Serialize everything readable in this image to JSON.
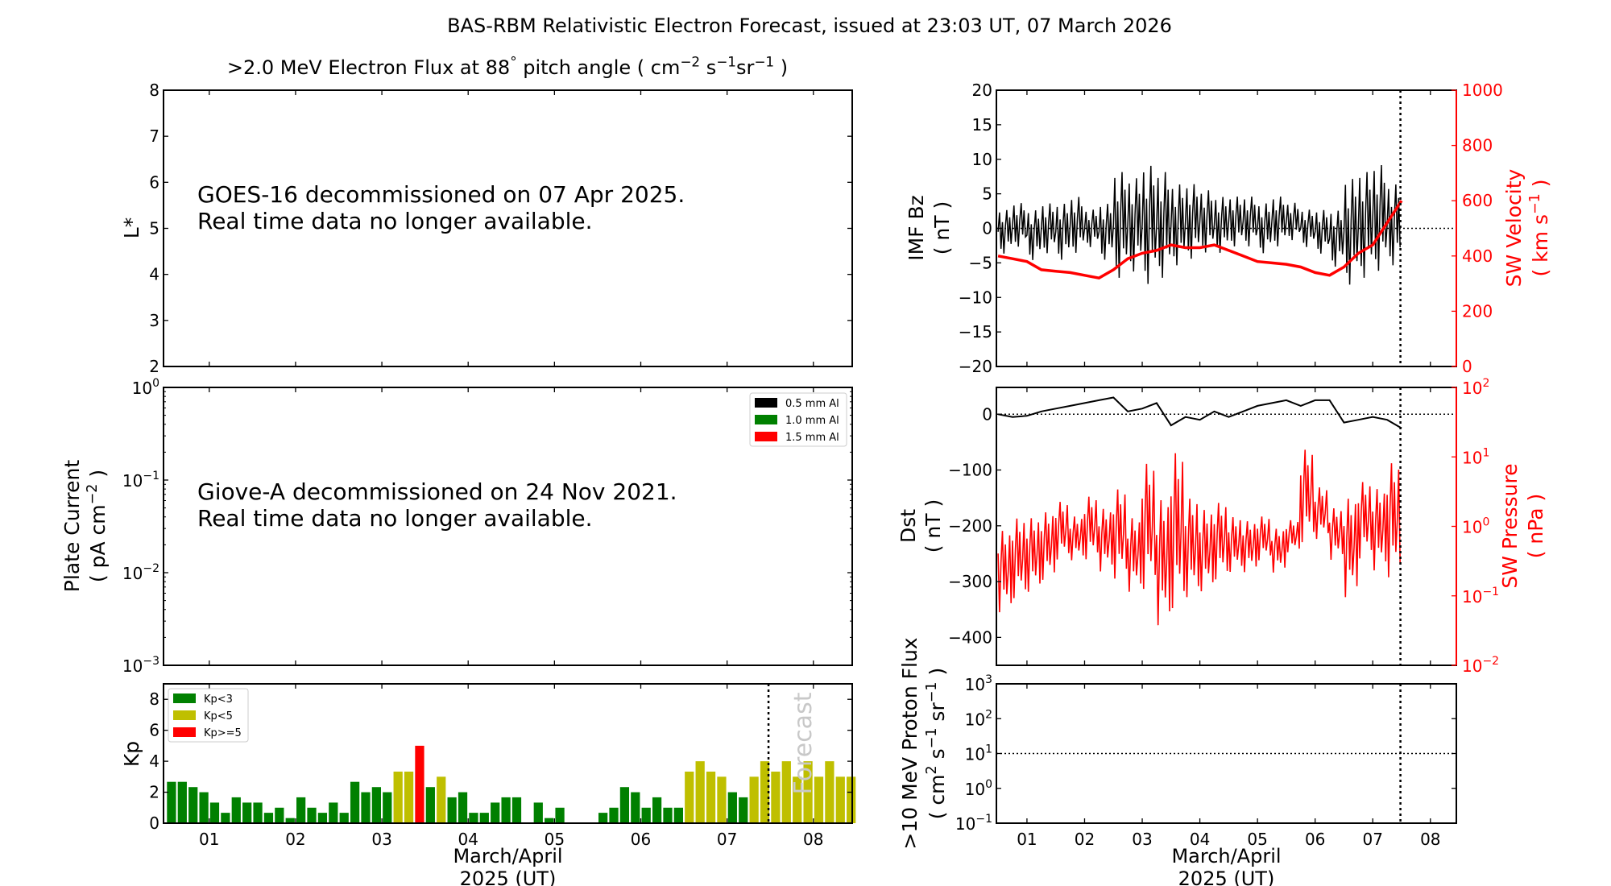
{
  "title": "BAS-RBM Relativistic Electron Forecast, issued at 23:03 UT, 07 March 2026",
  "colors": {
    "green": "#008000",
    "yellow": "#bfbf00",
    "red": "#ff0000",
    "black": "#000000",
    "forecast": "#c8c8c8"
  },
  "x_axis": {
    "xlim_days": [
      0.47,
      8.45
    ],
    "ticks": [
      1,
      2,
      3,
      4,
      5,
      6,
      7,
      8
    ],
    "tick_labels": [
      "01",
      "02",
      "03",
      "04",
      "05",
      "06",
      "07",
      "08"
    ],
    "xlabel_line1": "March/April",
    "xlabel_line2": "2025 (UT)",
    "now_day": 7.48
  },
  "chart_data": [
    {
      "id": "electron-flux",
      "type": "heatmap",
      "title_parts": [
        ">2.0 MeV Electron Flux at 88",
        "°",
        " pitch angle ( cm",
        "−2",
        " s",
        "−1",
        "sr",
        "−1",
        " )"
      ],
      "ylabel": "L*",
      "ylim": [
        2,
        8
      ],
      "yticks": [
        2,
        3,
        4,
        5,
        6,
        7,
        8
      ],
      "message": [
        "GOES-16 decommissioned on 07 Apr 2025.",
        "Real time data no longer available."
      ]
    },
    {
      "id": "plate-current",
      "type": "line",
      "ylabel": "Plate Current",
      "ylabel_units_parts": [
        "( pA cm",
        "−2",
        " )"
      ],
      "yscale": "log",
      "ylim_exp": [
        -3,
        0
      ],
      "ytick_exps": [
        "−3",
        "−2",
        "−1",
        "0"
      ],
      "legend": [
        {
          "label": "0.5 mm Al",
          "color": "#000000"
        },
        {
          "label": "1.0 mm Al",
          "color": "#008000"
        },
        {
          "label": "1.5 mm Al",
          "color": "#ff0000"
        }
      ],
      "legend_position": "top-right",
      "message": [
        "Giove-A decommissioned on 24 Nov 2021.",
        "Real time data no longer available."
      ]
    },
    {
      "id": "kp",
      "type": "bar",
      "ylabel": "Kp",
      "ylim": [
        0,
        9
      ],
      "yticks": [
        0,
        2,
        4,
        6,
        8
      ],
      "start_day": 0.5,
      "bar_width_days": 0.125,
      "values": [
        2.67,
        2.67,
        2.33,
        2,
        1.33,
        0.67,
        1.67,
        1.33,
        1.33,
        0.67,
        1,
        0.33,
        1.67,
        1,
        0.67,
        1.33,
        0.67,
        2.67,
        2,
        2.33,
        2,
        3.33,
        3.33,
        5,
        2.33,
        3,
        1.67,
        2,
        0.67,
        0.67,
        1.33,
        1.67,
        1.67,
        0,
        1.33,
        0.33,
        1,
        0,
        0,
        0,
        0.67,
        1,
        2.33,
        2,
        1,
        1.67,
        1,
        1,
        3.33,
        4,
        3.33,
        3,
        2,
        1.67,
        3,
        4,
        3.33,
        4,
        3,
        4,
        3,
        4,
        3,
        3
      ],
      "legend": [
        {
          "label": "Kp<3",
          "color": "#008000"
        },
        {
          "label": "Kp<5",
          "color": "#bfbf00"
        },
        {
          "label": "Kp>=5",
          "color": "#ff0000"
        }
      ],
      "legend_position": "top-left",
      "forecast_label": "Forecast"
    },
    {
      "id": "imf-sw",
      "type": "line",
      "ylabel": "IMF Bz",
      "ylabel_units": "( nT )",
      "ylim": [
        -20,
        20
      ],
      "yticks": [
        "−20",
        "−15",
        "−10",
        "−5",
        "0",
        "5",
        "10",
        "15",
        "20"
      ],
      "ytick_values": [
        -20,
        -15,
        -10,
        -5,
        0,
        5,
        10,
        15,
        20
      ],
      "y2label": "SW Velocity",
      "y2label_units_parts": [
        "( km s",
        "−1",
        " )"
      ],
      "y2lim": [
        0,
        1000
      ],
      "y2ticks": [
        0,
        200,
        400,
        600,
        800,
        1000
      ],
      "x_start": 0.5,
      "x_step": 0.25,
      "bz_min": [
        -4,
        -3,
        -5,
        -4,
        -5,
        -4,
        -3,
        -5,
        -8,
        -7,
        -9,
        -8,
        -6,
        -5,
        -4,
        -4,
        -3,
        -3,
        -4,
        -3,
        -2,
        -3,
        -4,
        -6,
        -9,
        -8,
        -7,
        -6
      ],
      "bz_max": [
        3,
        4,
        3,
        4,
        4,
        5,
        3,
        4,
        9,
        8,
        10,
        9,
        7,
        7,
        6,
        5,
        5,
        5,
        4,
        5,
        4,
        3,
        3,
        3,
        8,
        9,
        10,
        7
      ],
      "velocity": [
        400,
        390,
        380,
        350,
        345,
        340,
        330,
        320,
        350,
        390,
        410,
        420,
        440,
        430,
        430,
        440,
        420,
        400,
        380,
        375,
        370,
        360,
        340,
        330,
        360,
        410,
        440,
        520,
        600
      ]
    },
    {
      "id": "dst-pressure",
      "type": "line",
      "ylabel": "Dst",
      "ylabel_units": "( nT )",
      "ylim": [
        -450,
        48
      ],
      "yticks": [
        "−400",
        "−300",
        "−200",
        "−100",
        "0"
      ],
      "ytick_values": [
        -400,
        -300,
        -200,
        -100,
        0
      ],
      "y2label": "SW Pressure",
      "y2label_units": "( nPa )",
      "y2scale": "log",
      "y2lim_exp": [
        -2,
        2
      ],
      "y2tick_exps": [
        "−2",
        "−1",
        "0",
        "1",
        "2"
      ],
      "x_start": 0.5,
      "x_step": 0.25,
      "dst": [
        0,
        -5,
        -3,
        5,
        10,
        15,
        20,
        25,
        30,
        5,
        10,
        20,
        -20,
        -5,
        -10,
        5,
        -5,
        5,
        15,
        20,
        25,
        15,
        25,
        25,
        -15,
        -10,
        -5,
        -10,
        -25
      ],
      "pressure_min": [
        0.05,
        0.08,
        0.1,
        0.15,
        0.3,
        0.3,
        0.3,
        0.2,
        0.15,
        0.1,
        0.1,
        0.03,
        0.05,
        0.08,
        0.1,
        0.15,
        0.2,
        0.2,
        0.3,
        0.2,
        0.4,
        0.5,
        0.6,
        0.3,
        0.08,
        0.3,
        0.2,
        0.15
      ],
      "pressure_max": [
        1.0,
        1.5,
        1.5,
        1.8,
        2.5,
        1.5,
        3,
        2.0,
        4,
        1.5,
        10,
        3,
        15,
        3,
        2,
        2.5,
        1.5,
        1.3,
        1.5,
        1,
        1.3,
        15,
        4,
        2,
        3,
        5,
        4,
        10
      ]
    },
    {
      "id": "proton-flux",
      "type": "line",
      "ylabel": ">10 MeV Proton Flux",
      "ylabel_units_parts": [
        "( cm",
        "2",
        " s",
        "−1",
        " sr",
        "−1",
        " )"
      ],
      "yscale": "log",
      "ylim_exp": [
        -1,
        3
      ],
      "ytick_exps": [
        "−1",
        "0",
        "1",
        "2",
        "3"
      ],
      "threshold": 10
    }
  ]
}
